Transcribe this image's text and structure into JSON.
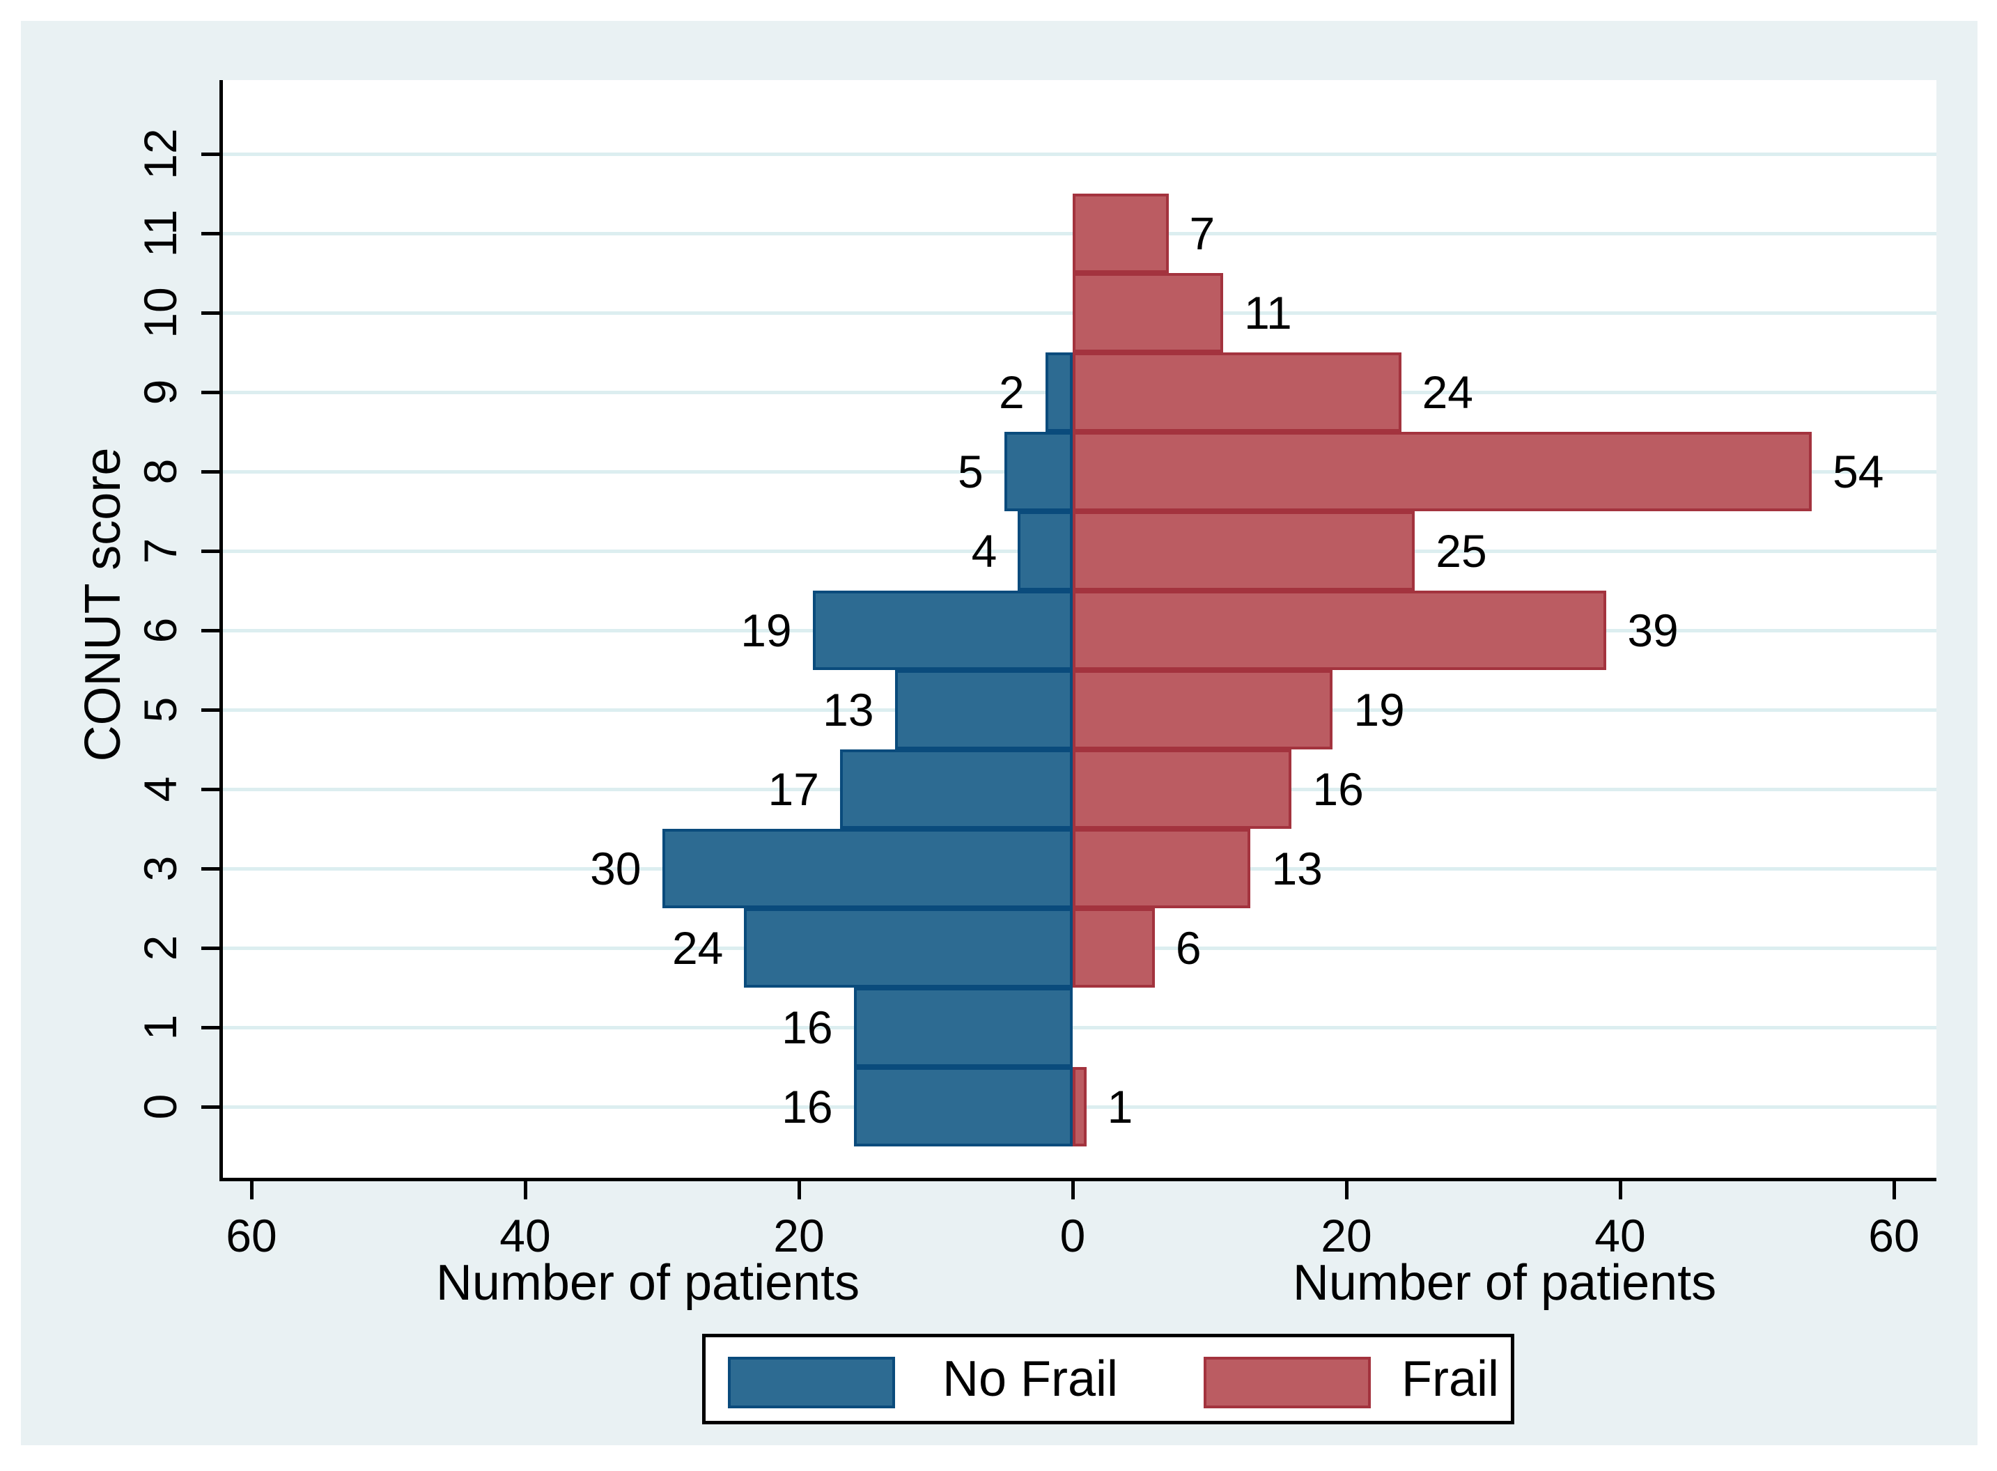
{
  "figure": {
    "background": "#e9f1f3",
    "plot_background": "#ffffff",
    "gridline_color": "#dceef0",
    "axis_color": "#000000",
    "text_color": "#000000"
  },
  "chart_data": {
    "type": "bar",
    "variant": "population-pyramid",
    "title": "",
    "categories": [
      0,
      1,
      2,
      3,
      4,
      5,
      6,
      7,
      8,
      9,
      10,
      11,
      12
    ],
    "category_axis": {
      "title": "CONUT score",
      "tick_labels": [
        "0",
        "1",
        "2",
        "3",
        "4",
        "5",
        "6",
        "7",
        "8",
        "9",
        "10",
        "11",
        "12"
      ]
    },
    "value_axis": {
      "title_left": "Number of patients",
      "title_right": "Number of patients",
      "ticks": [
        {
          "value": -60,
          "label": "60"
        },
        {
          "value": -40,
          "label": "40"
        },
        {
          "value": -20,
          "label": "20"
        },
        {
          "value": 0,
          "label": "0"
        },
        {
          "value": 20,
          "label": "20"
        },
        {
          "value": 40,
          "label": "40"
        },
        {
          "value": 60,
          "label": "60"
        }
      ],
      "max": 60,
      "grid": true
    },
    "series": [
      {
        "name": "No Frail",
        "side": "left",
        "color": "#2d6b92",
        "border_color": "#0a4b7c",
        "values": [
          16,
          16,
          24,
          30,
          17,
          13,
          19,
          4,
          5,
          2,
          0,
          0,
          0
        ]
      },
      {
        "name": "Frail",
        "side": "right",
        "color": "#bb5c62",
        "border_color": "#a3333e",
        "values": [
          1,
          0,
          6,
          13,
          16,
          19,
          39,
          25,
          54,
          24,
          11,
          7,
          0
        ]
      }
    ],
    "legend": {
      "position": "bottom-center",
      "entries": [
        {
          "label": "No Frail",
          "color": "#2d6b92"
        },
        {
          "label": "Frail",
          "color": "#bb5c62"
        }
      ]
    }
  }
}
